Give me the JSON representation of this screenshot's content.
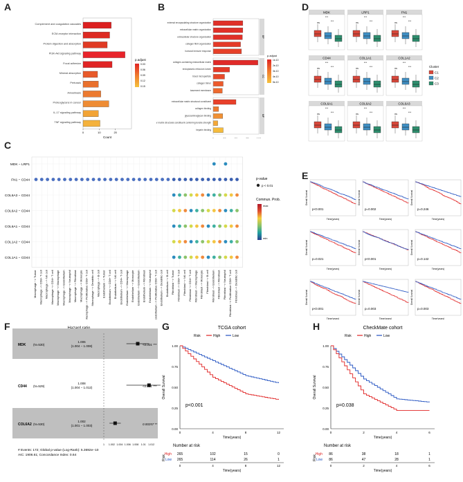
{
  "panels": {
    "A": {
      "letter": "A",
      "bars": [
        {
          "label": "Complement and coagulation cascades",
          "value": 17.5,
          "color": "#dc2020"
        },
        {
          "label": "ECM-receptor interaction",
          "value": 16.5,
          "color": "#dd2a22"
        },
        {
          "label": "Protein digestion and absorption",
          "value": 15.0,
          "color": "#e03a24"
        },
        {
          "label": "PI3K-Akt signaling pathway",
          "value": 26.0,
          "color": "#e8232a"
        },
        {
          "label": "Focal adhesion",
          "value": 18.0,
          "color": "#e02424"
        },
        {
          "label": "Mineral absorption",
          "value": 9.0,
          "color": "#e85a2a"
        },
        {
          "label": "Pertussis",
          "value": 9.5,
          "color": "#e9702c"
        },
        {
          "label": "Amoebiasis",
          "value": 11.0,
          "color": "#ec7a30"
        },
        {
          "label": "Proteoglycans in cancer",
          "value": 16.0,
          "color": "#ee8c34"
        },
        {
          "label": "IL-17 signaling pathway",
          "value": 9.5,
          "color": "#f2a436"
        },
        {
          "label": "TNF signaling pathway",
          "value": 10.5,
          "color": "#f4b23c"
        }
      ],
      "xticks": [
        "0",
        "10",
        "20"
      ],
      "xlabel": "Count",
      "legend_title": "p.adjust",
      "legend_ticks": [
        "0.03",
        "0.06",
        "0.09",
        "0.12",
        "0.15"
      ]
    },
    "B": {
      "letter": "B",
      "groups": [
        {
          "name": "BP",
          "bars": [
            {
              "label": "external encapsulating structure organization",
              "value": 65,
              "color": "#e03028"
            },
            {
              "label": "extracellular matrix organization",
              "value": 65,
              "color": "#e03028"
            },
            {
              "label": "extracellular structure organization",
              "value": 64,
              "color": "#e03028"
            },
            {
              "label": "collagen fibril organization",
              "value": 60,
              "color": "#e43a28"
            },
            {
              "label": "humoral immune response",
              "value": 62,
              "color": "#e64028"
            }
          ]
        },
        {
          "name": "CC",
          "bars": [
            {
              "label": "collagen-containing extracellular matrix",
              "value": 98,
              "color": "#e02a28"
            },
            {
              "label": "endoplasmic reticulum lumen",
              "value": 36,
              "color": "#e43a28"
            },
            {
              "label": "blood microparticle",
              "value": 25,
              "color": "#e84a2a"
            },
            {
              "label": "collagen trimer",
              "value": 22,
              "color": "#ec5a2c"
            },
            {
              "label": "basement membrane",
              "value": 20,
              "color": "#ee6a2e"
            }
          ]
        },
        {
          "name": "MF",
          "bars": [
            {
              "label": "extracellular matrix structural constituent",
              "value": 50,
              "color": "#e8402a"
            },
            {
              "label": "collagen binding",
              "value": 12,
              "color": "#ee7a30"
            },
            {
              "label": "glycosaminoglycan binding",
              "value": 21,
              "color": "#f09034"
            },
            {
              "label": "extracellular matrix structural constituent conferring tensile strength",
              "value": 10,
              "color": "#f4a838"
            },
            {
              "label": "heparin binding",
              "value": 22,
              "color": "#f6bc3c"
            }
          ]
        }
      ],
      "xticks": [
        "0",
        "25",
        "50",
        "75",
        "100"
      ],
      "xlabel": "Count",
      "legend_title": "p.adjust",
      "legend_ticks": [
        "1e-10",
        "2e-10",
        "3e-10",
        "4e-10",
        "5e-10"
      ]
    },
    "C": {
      "letter": "C",
      "pairs": [
        "MDK − LRP1",
        "FN1 − CD44",
        "COL6A3 − CD44",
        "COL6A2 − CD44",
        "COL6A1 − CD44",
        "COL1A2 − CD44",
        "COL1A1 − CD44"
      ],
      "cell_pairs": [
        "Macrophage −> Tumor",
        "Macrophage −> CD8+ T cell",
        "Macrophage −> NK cell",
        "Macrophage −> CD4+ T cell",
        "Macrophage −> Macrophage",
        "Macrophage −> Endothelium",
        "Macrophage −> Neutrophil",
        "Macrophage −> Fibroblast",
        "Macrophage −> Monocyte",
        "Macrophage −> Proliferative CD8+ T cell",
        "Macrophage −> Dendritic cell",
        "Macrophage −> B cell",
        "Endothelium −> Tumor",
        "Endothelium −> CD8+ T cell",
        "Endothelium −> NK cell",
        "Endothelium −> CD4+ T cell",
        "Endothelium −> Macrophage",
        "Endothelium −> Monocyte",
        "Endothelium −> Endothelium",
        "Endothelium −> Fibroblast",
        "Endothelium −> Neutrophil",
        "Endothelium −> Proliferative CD8+ T cell",
        "Endothelium −> Dendritic cell",
        "Endothelium −> B cell",
        "Fibroblast −> Tumor",
        "Fibroblast −> CD8+ T cell",
        "Fibroblast −> NK cell",
        "Fibroblast −> CD4+ T cell",
        "Fibroblast −> Macrophage",
        "Fibroblast −> Monocyte",
        "Fibroblast −> B cell",
        "Fibroblast −> Endothelium",
        "Fibroblast −> Fibroblast",
        "Fibroblast −> Neutrophil",
        "Fibroblast −> Proliferative CD8+ T cell",
        "Fibroblast −> Dendritic cell"
      ],
      "legend_pvalue_title": "p-value",
      "legend_pvalue_entry": "p < 0.01",
      "legend_prob_title": "Commun. Prob.",
      "legend_prob_max": "max",
      "legend_prob_min": "min"
    },
    "D": {
      "letter": "D",
      "genes": [
        "MDK",
        "LRP1",
        "FN1",
        "CD44",
        "COL1A1",
        "COL1A2",
        "COL6A1",
        "COL6A2",
        "COL6A3"
      ],
      "legend_title": "Cluster",
      "clusters": [
        {
          "name": "C1",
          "color": "#d9473a"
        },
        {
          "name": "C2",
          "color": "#3f8fc4"
        },
        {
          "name": "C3",
          "color": "#2e8e6e"
        }
      ]
    },
    "E": {
      "letter": "E",
      "pvalues": [
        "p<0.001",
        "p=0.002",
        "p=0.246",
        "p=0.021",
        "p<0.001",
        "p=0.142",
        "p<0.001",
        "p=0.003",
        "p=0.003"
      ],
      "xlabel": "Time(years)",
      "ylabel": "Overall Survival"
    },
    "F": {
      "letter": "F",
      "title": "Hazard ratio",
      "rows": [
        {
          "gene": "MDK",
          "n": "(N=530)",
          "hr": "1.006",
          "ci": "(1.004 − 1.008)",
          "p": "<0.001 ***",
          "est": 1.006,
          "lo": 1.004,
          "hi": 1.008
        },
        {
          "gene": "CD44",
          "n": "(N=529)",
          "hr": "1.008",
          "ci": "(1.004 − 1.012)",
          "p": "<0.001 ***",
          "est": 1.008,
          "lo": 1.004,
          "hi": 1.012
        },
        {
          "gene": "COL6A2",
          "n": "(N=530)",
          "hr": "1.002",
          "ci": "(1.001 − 1.003)",
          "p": "0.00257 **",
          "est": 1.002,
          "lo": 1.001,
          "hi": 1.003
        }
      ],
      "axis_ticks": [
        "1",
        "1.002",
        "1.004",
        "1.006",
        "1.008",
        "1.01",
        "1.012"
      ],
      "footer1": "# Events: 172; Global p-value (Log-Rank): 5.3692e−10",
      "footer2": "AIC: 1906.61; Concordance Index: 0.64"
    },
    "G": {
      "letter": "G",
      "title": "TCGA cohort",
      "legend_label": "Risk",
      "high": "High",
      "low": "Low",
      "pvalue": "p<0.001",
      "ylabel": "Overall Survival",
      "xlabel": "Time(years)",
      "yticks": [
        "0.00",
        "0.25",
        "0.50",
        "0.75",
        "1.00"
      ],
      "xticks": [
        "0",
        "4",
        "8",
        "12"
      ],
      "risk_title": "Number at risk",
      "risk_high": [
        "265",
        "102",
        "15",
        "0"
      ],
      "risk_low": [
        "265",
        "114",
        "26",
        "1"
      ],
      "risk_axis": "Risk"
    },
    "H": {
      "letter": "H",
      "title": "CheckMate cohort",
      "legend_label": "Risk",
      "high": "High",
      "low": "Low",
      "pvalue": "p=0.038",
      "ylabel": "Overall Survival",
      "xlabel": "Time(years)",
      "yticks": [
        "0.00",
        "0.25",
        "0.50",
        "0.75",
        "1.00"
      ],
      "xticks": [
        "0",
        "2",
        "4",
        "6"
      ],
      "risk_title": "Number at risk",
      "risk_high": [
        "86",
        "38",
        "18",
        "1"
      ],
      "risk_low": [
        "86",
        "47",
        "28",
        "1"
      ],
      "risk_axis": "Risk"
    }
  },
  "chart_data": [
    {
      "type": "bar",
      "panel": "A",
      "title": "KEGG enrichment",
      "xlabel": "Count",
      "categories": [
        "Complement and coagulation cascades",
        "ECM-receptor interaction",
        "Protein digestion and absorption",
        "PI3K-Akt signaling pathway",
        "Focal adhesion",
        "Mineral absorption",
        "Pertussis",
        "Amoebiasis",
        "Proteoglycans in cancer",
        "IL-17 signaling pathway",
        "TNF signaling pathway"
      ],
      "values": [
        17.5,
        16.5,
        15,
        26,
        18,
        9,
        9.5,
        11,
        16,
        9.5,
        10.5
      ]
    },
    {
      "type": "bar",
      "panel": "B",
      "title": "GO enrichment",
      "xlabel": "Count",
      "series": [
        {
          "name": "BP",
          "values": [
            65,
            65,
            64,
            60,
            62
          ]
        },
        {
          "name": "CC",
          "values": [
            98,
            36,
            25,
            22,
            20
          ]
        },
        {
          "name": "MF",
          "values": [
            50,
            12,
            21,
            10,
            22
          ]
        }
      ]
    },
    {
      "type": "scatter",
      "panel": "C",
      "title": "Ligand-receptor communication",
      "xlabel": "cell pairs",
      "ylabel": "ligand-receptor pairs"
    },
    {
      "type": "line",
      "panel": "G",
      "title": "TCGA cohort",
      "xlabel": "Time(years)",
      "ylabel": "Overall Survival",
      "ylim": [
        0,
        1
      ],
      "x": [
        0,
        4,
        8,
        12
      ],
      "series": [
        {
          "name": "High",
          "values": [
            1.0,
            0.62,
            0.42,
            0.35
          ]
        },
        {
          "name": "Low",
          "values": [
            1.0,
            0.82,
            0.64,
            0.55
          ]
        }
      ]
    },
    {
      "type": "line",
      "panel": "H",
      "title": "CheckMate cohort",
      "xlabel": "Time(years)",
      "ylabel": "Overall Survival",
      "ylim": [
        0,
        1
      ],
      "x": [
        0,
        2,
        4,
        6
      ],
      "series": [
        {
          "name": "High",
          "values": [
            1.0,
            0.42,
            0.22,
            0.22
          ]
        },
        {
          "name": "Low",
          "values": [
            1.0,
            0.6,
            0.36,
            0.32
          ]
        }
      ]
    }
  ]
}
